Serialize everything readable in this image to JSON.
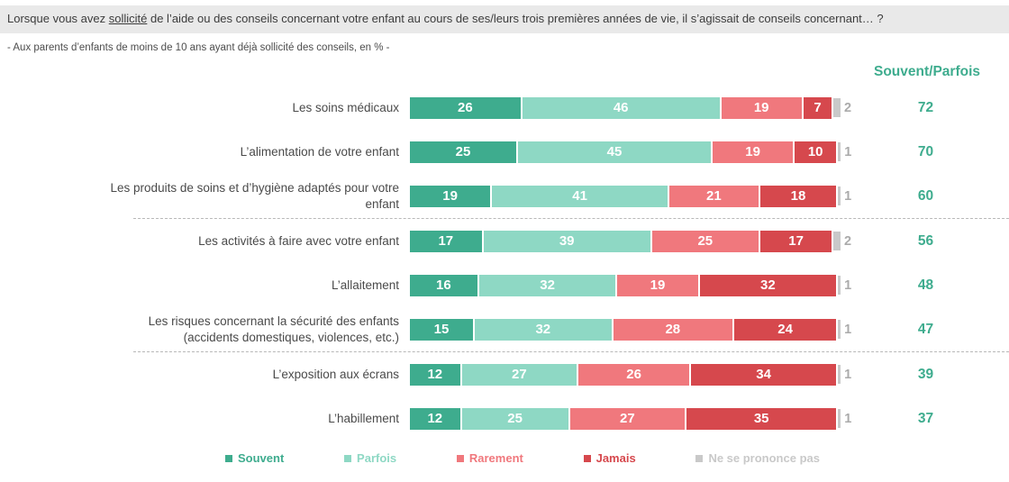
{
  "title": {
    "prefix": "Lorsque vous avez ",
    "underlined": "sollicité",
    "suffix": " de l’aide ou des conseils concernant votre enfant au cours de ses/leurs trois premières années de vie, il s’agissait de conseils concernant… ?"
  },
  "subtitle": "- Aux parents d’enfants de moins de 10 ans ayant déjà sollicité des conseils, en % -",
  "total_header": "Souvent/Parfois",
  "colors": {
    "souvent": "#3eac8e",
    "parfois": "#8ed8c4",
    "rarement": "#f0787d",
    "jamais": "#d6484d",
    "nsp": "#c9c9c9",
    "total_text": "#3eac8e",
    "nsp_number_text": "#ababab",
    "title_bg": "#e9e9e9"
  },
  "chart_data": {
    "type": "bar",
    "stacked": true,
    "orientation": "horizontal",
    "unit": "%",
    "xlim": [
      0,
      100
    ],
    "legend_position": "bottom",
    "total_column_label": "Souvent/Parfois",
    "series_names": [
      "Souvent",
      "Parfois",
      "Rarement",
      "Jamais",
      "Ne se prononce pas"
    ],
    "categories": [
      "Les soins médicaux",
      "L’alimentation de votre enfant",
      "Les produits de soins et d’hygiène adaptés pour votre enfant",
      "Les activités à faire avec votre enfant",
      "L’allaitement",
      "Les risques concernant la sécurité des enfants (accidents domestiques, violences, etc.)",
      "L’exposition aux écrans",
      "L’habillement"
    ],
    "rows": [
      {
        "label": "Les soins médicaux",
        "values": [
          26,
          46,
          19,
          7,
          2
        ],
        "total_souvent_parfois": 72
      },
      {
        "label": "L’alimentation de votre enfant",
        "values": [
          25,
          45,
          19,
          10,
          1
        ],
        "total_souvent_parfois": 70
      },
      {
        "label": "Les produits de soins et d’hygiène adaptés pour votre\nenfant",
        "values": [
          19,
          41,
          21,
          18,
          1
        ],
        "total_souvent_parfois": 60
      },
      {
        "label": "Les activités à faire avec votre enfant",
        "values": [
          17,
          39,
          25,
          17,
          2
        ],
        "total_souvent_parfois": 56
      },
      {
        "label": "L’allaitement",
        "values": [
          16,
          32,
          19,
          32,
          1
        ],
        "total_souvent_parfois": 48
      },
      {
        "label": "Les risques concernant la sécurité des enfants\n(accidents domestiques, violences, etc.)",
        "values": [
          15,
          32,
          28,
          24,
          1
        ],
        "total_souvent_parfois": 47
      },
      {
        "label": "L’exposition aux écrans",
        "values": [
          12,
          27,
          26,
          34,
          1
        ],
        "total_souvent_parfois": 39
      },
      {
        "label": "L’habillement",
        "values": [
          12,
          25,
          27,
          35,
          1
        ],
        "total_souvent_parfois": 37
      }
    ],
    "separators_after": [
      2,
      5
    ]
  },
  "legend": [
    {
      "label": "Souvent",
      "color": "#3eac8e"
    },
    {
      "label": "Parfois",
      "color": "#8ed8c4"
    },
    {
      "label": "Rarement",
      "color": "#f0787d"
    },
    {
      "label": "Jamais",
      "color": "#d6484d"
    },
    {
      "label": "Ne se prononce pas",
      "color": "#c9c9c9"
    }
  ]
}
